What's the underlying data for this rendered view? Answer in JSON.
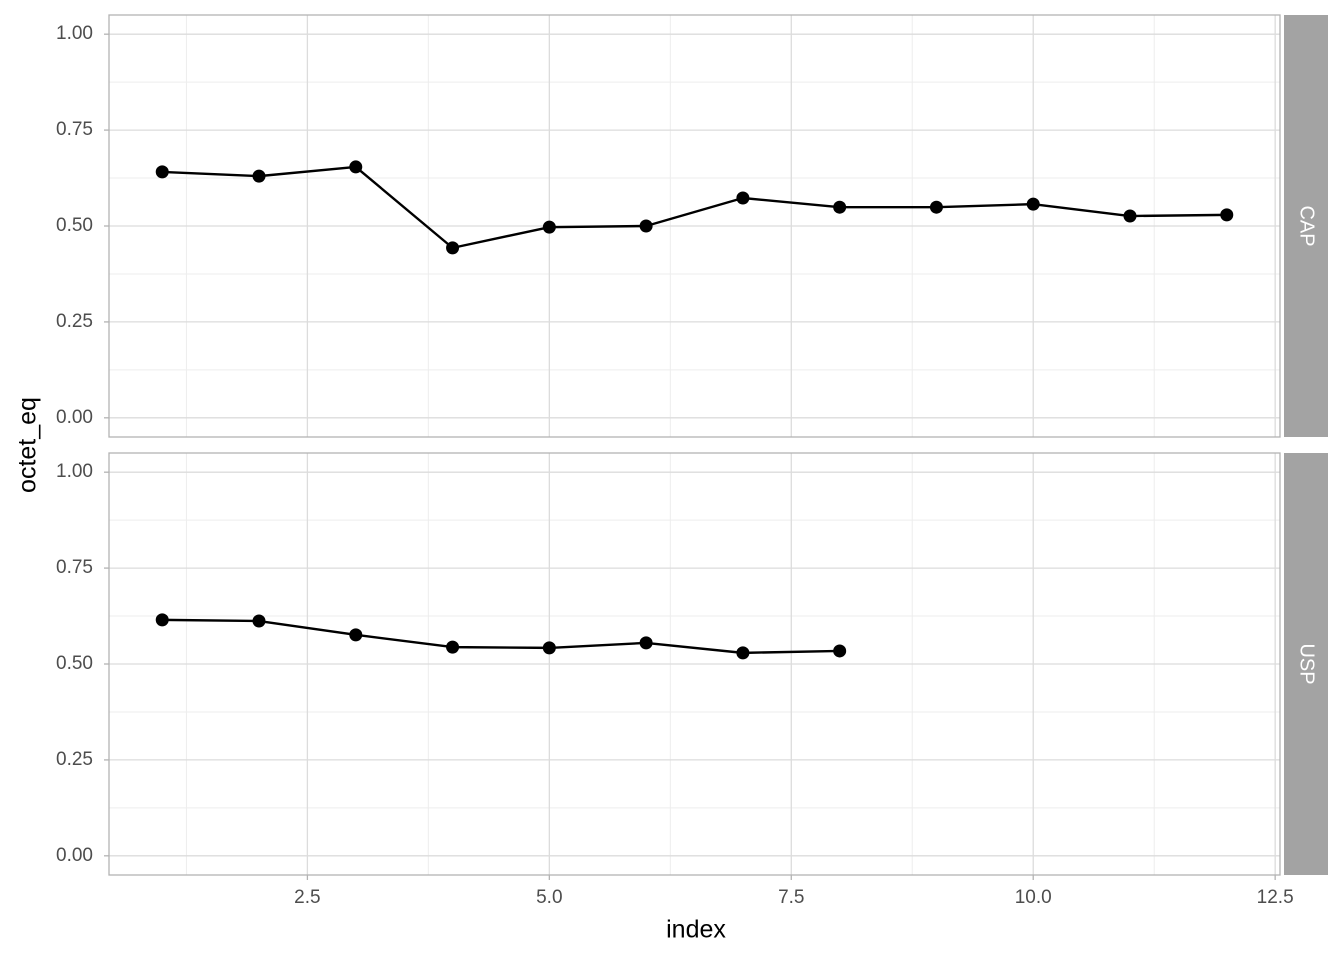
{
  "chart_data": {
    "type": "line",
    "xlabel": "index",
    "ylabel": "octet_eq",
    "xlim": [
      0.45,
      12.55
    ],
    "xticks": [
      2.5,
      {
        "value": 5,
        "label": "5.0"
      },
      7.5,
      {
        "value": 10,
        "label": "10.0"
      },
      12.5
    ],
    "ylim": [
      -0.05,
      1.05
    ],
    "yticks": [
      {
        "value": 0,
        "label": "0.00"
      },
      {
        "value": 0.25,
        "label": "0.25"
      },
      {
        "value": 0.5,
        "label": "0.50"
      },
      {
        "value": 0.75,
        "label": "0.75"
      },
      {
        "value": 1,
        "label": "1.00"
      }
    ],
    "grid": true,
    "facets": true,
    "series": [
      {
        "name": "CAP",
        "color": "#000000",
        "x": [
          1,
          2,
          3,
          4,
          5,
          6,
          7,
          8,
          9,
          10,
          11,
          12
        ],
        "values": [
          0.641,
          0.63,
          0.654,
          0.443,
          0.497,
          0.5,
          0.573,
          0.549,
          0.549,
          0.557,
          0.526,
          0.529
        ]
      },
      {
        "name": "USP",
        "color": "#000000",
        "x": [
          1,
          2,
          3,
          4,
          5,
          6,
          7,
          8
        ],
        "values": [
          0.615,
          0.612,
          0.576,
          0.544,
          0.542,
          0.555,
          0.529,
          0.534
        ]
      }
    ]
  }
}
